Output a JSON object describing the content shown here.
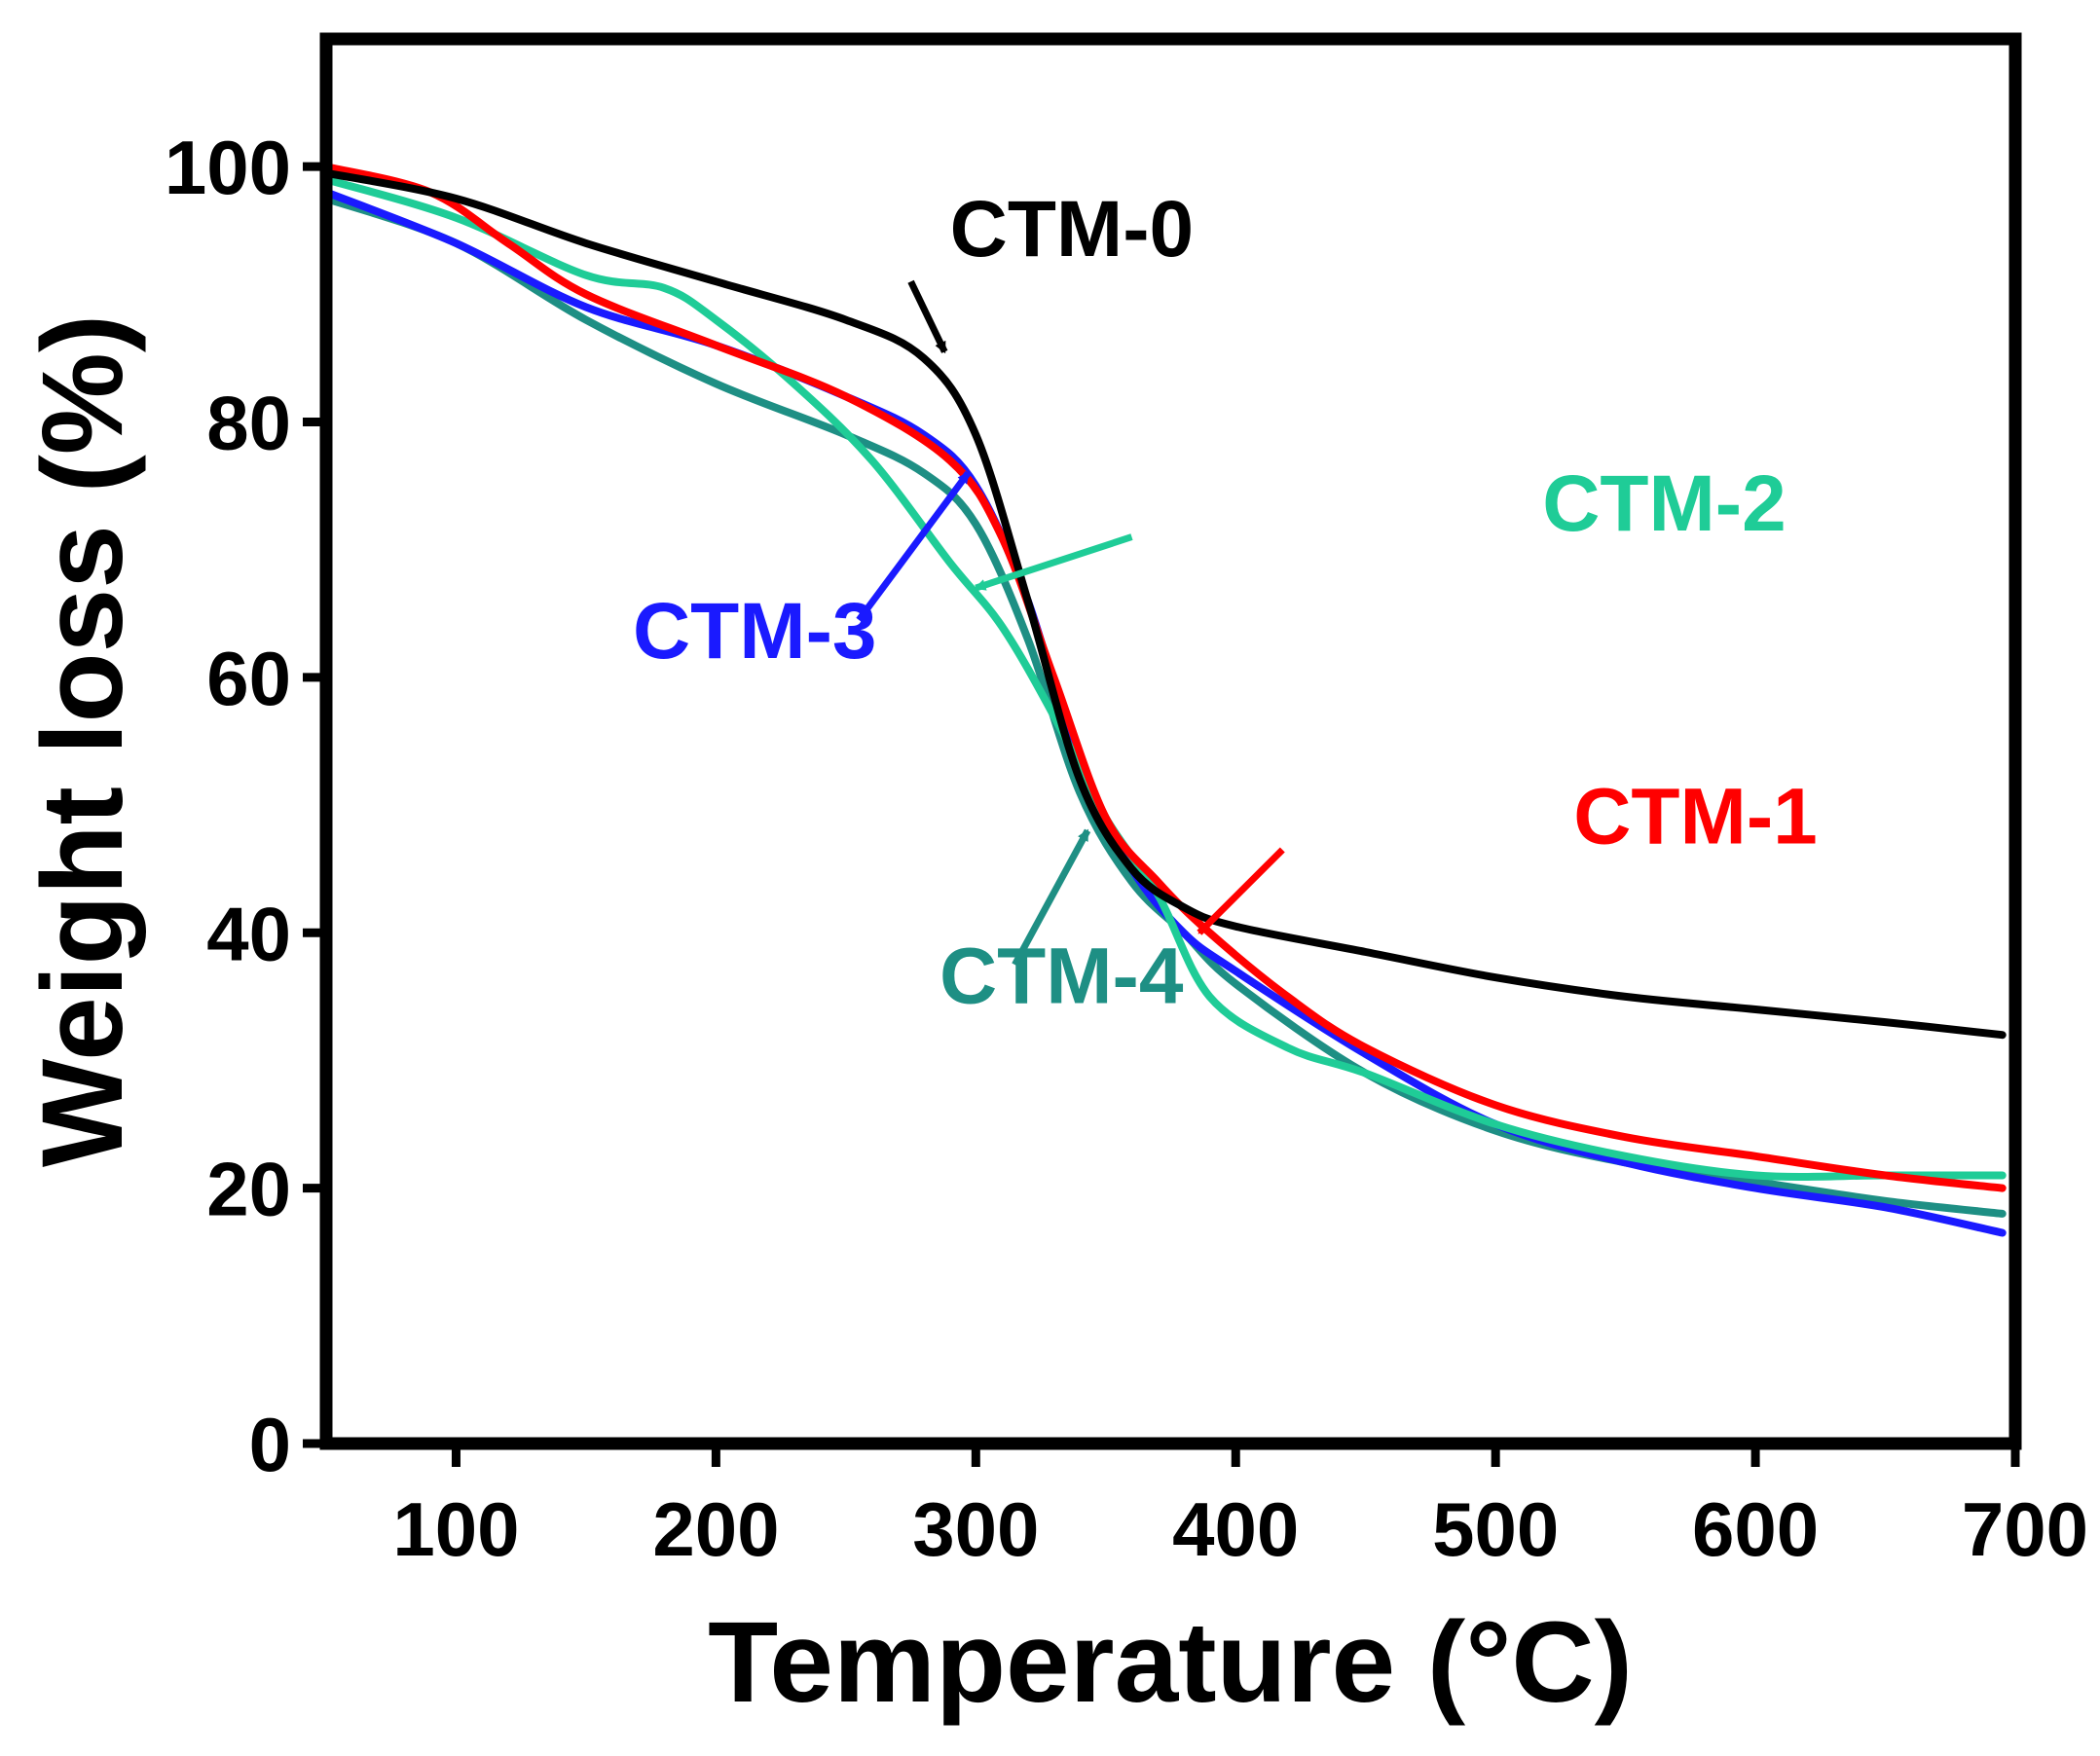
{
  "chart_data": {
    "type": "line",
    "title": "",
    "xlabel": "Temperature (°C)",
    "ylabel": "Weight loss (%)",
    "xlim": [
      50,
      700
    ],
    "ylim": [
      0,
      110
    ],
    "xticks": [
      100,
      200,
      300,
      400,
      500,
      600,
      700
    ],
    "yticks": [
      0,
      20,
      40,
      60,
      80,
      100
    ],
    "x_tick_labels": [
      "100",
      "200",
      "300",
      "400",
      "500",
      "600",
      "700"
    ],
    "y_tick_labels": [
      "0",
      "20",
      "40",
      "60",
      "80",
      "100"
    ],
    "grid": false,
    "legend": "inline labels with arrows",
    "series": [
      {
        "name": "CTM-0",
        "color": "#000000",
        "x": [
          50,
          100,
          150,
          200,
          250,
          280,
          300,
          320,
          340,
          360,
          380,
          400,
          450,
          500,
          550,
          600,
          650,
          695
        ],
        "y": [
          99.5,
          97.5,
          94,
          91,
          88,
          85,
          79,
          66,
          52,
          45,
          42,
          40.5,
          38.5,
          36.5,
          35,
          34,
          33,
          32
        ]
      },
      {
        "name": "CTM-1",
        "color": "#ff0000",
        "x": [
          50,
          90,
          120,
          150,
          200,
          250,
          290,
          310,
          330,
          350,
          370,
          390,
          420,
          450,
          500,
          550,
          600,
          650,
          695
        ],
        "y": [
          100,
          98,
          94,
          90,
          86,
          82,
          77,
          71,
          60,
          49,
          44,
          40,
          35,
          31,
          26.5,
          24,
          22.5,
          21,
          20
        ]
      },
      {
        "name": "CTM-2",
        "color": "#1fcc97",
        "x": [
          50,
          100,
          150,
          180,
          200,
          230,
          260,
          290,
          310,
          330,
          350,
          370,
          390,
          420,
          450,
          500,
          550,
          600,
          650,
          695
        ],
        "y": [
          99,
          96,
          91.5,
          90.5,
          88,
          83,
          77,
          69,
          64,
          57,
          49,
          43,
          35,
          31,
          29,
          25,
          22.5,
          21,
          21,
          21
        ]
      },
      {
        "name": "CTM-3",
        "color": "#1a1aff",
        "x": [
          50,
          100,
          150,
          200,
          250,
          280,
          300,
          320,
          340,
          360,
          380,
          400,
          450,
          500,
          550,
          600,
          650,
          695
        ],
        "y": [
          98,
          94,
          89,
          86,
          82,
          79,
          75,
          66,
          53,
          45,
          40,
          37,
          30.5,
          25,
          22,
          20,
          18.5,
          16.5
        ]
      },
      {
        "name": "CTM-4",
        "color": "#1e8f84",
        "x": [
          50,
          100,
          150,
          200,
          250,
          280,
          300,
          320,
          340,
          360,
          380,
          400,
          450,
          500,
          550,
          600,
          650,
          695
        ],
        "y": [
          97.5,
          94,
          88,
          83,
          79,
          76,
          72,
          63,
          51,
          44,
          40,
          36,
          29,
          24.5,
          22,
          20.5,
          19,
          18
        ]
      }
    ],
    "annotations": [
      {
        "series": "CTM-0",
        "text": "CTM-0",
        "color": "#000000",
        "text_x": 290,
        "text_y": 93,
        "arrow_tail_x": 275,
        "arrow_tail_y": 91,
        "arrow_head_x": 288,
        "arrow_head_y": 85.5
      },
      {
        "series": "CTM-1",
        "text": "CTM-1",
        "color": "#ff0000",
        "text_x": 530,
        "text_y": 47,
        "arrow_tail_x": 418,
        "arrow_tail_y": 46.5,
        "arrow_head_x": 386,
        "arrow_head_y": 40
      },
      {
        "series": "CTM-2",
        "text": "CTM-2",
        "color": "#1fcc97",
        "text_x": 518,
        "text_y": 71.5,
        "arrow_tail_x": 360,
        "arrow_tail_y": 71,
        "arrow_head_x": 300,
        "arrow_head_y": 67
      },
      {
        "series": "CTM-3",
        "text": "CTM-3",
        "color": "#1a1aff",
        "text_x": 168,
        "text_y": 61.5,
        "arrow_tail_x": 255,
        "arrow_tail_y": 64.5,
        "arrow_head_x": 297,
        "arrow_head_y": 76
      },
      {
        "series": "CTM-4",
        "text": "CTM-4",
        "color": "#1e8f84",
        "text_x": 286,
        "text_y": 34.5,
        "arrow_tail_x": 315,
        "arrow_tail_y": 37.5,
        "arrow_head_x": 343,
        "arrow_head_y": 48
      }
    ]
  }
}
